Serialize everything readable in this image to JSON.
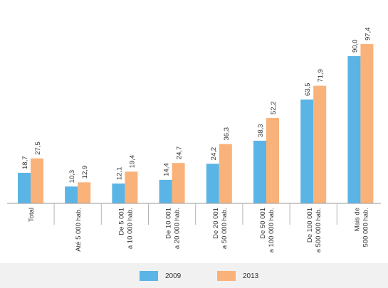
{
  "chart_data": {
    "type": "bar",
    "categories": [
      [
        "Total"
      ],
      [
        "Até 5 000 hab."
      ],
      [
        "De 5 001",
        "a 10 000 hab."
      ],
      [
        "De 10 001",
        "a 20 000 hab."
      ],
      [
        "De 20 001",
        "a 50 000 hab."
      ],
      [
        "De 50 001",
        "a 100 000 hab."
      ],
      [
        "De 100 001",
        "a 500 000 hab."
      ],
      [
        "Mais de",
        "500 000 hab."
      ]
    ],
    "series": [
      {
        "name": "2009",
        "color": "#5ab4e5",
        "values": [
          18.7,
          10.3,
          12.1,
          14.4,
          24.2,
          38.3,
          63.5,
          90.0
        ],
        "labels": [
          "18,7",
          "10,3",
          "12,1",
          "14,4",
          "24,2",
          "38,3",
          "63,5",
          "90,0"
        ]
      },
      {
        "name": "2013",
        "color": "#f9b27a",
        "values": [
          27.5,
          12.9,
          19.4,
          24.7,
          36.3,
          52.2,
          71.9,
          97.4
        ],
        "labels": [
          "27,5",
          "12,9",
          "19,4",
          "24,7",
          "36,3",
          "52,2",
          "71,9",
          "97,4"
        ]
      }
    ],
    "ylim": [
      0,
      100
    ],
    "grid": false,
    "legend": "bottom-center"
  }
}
